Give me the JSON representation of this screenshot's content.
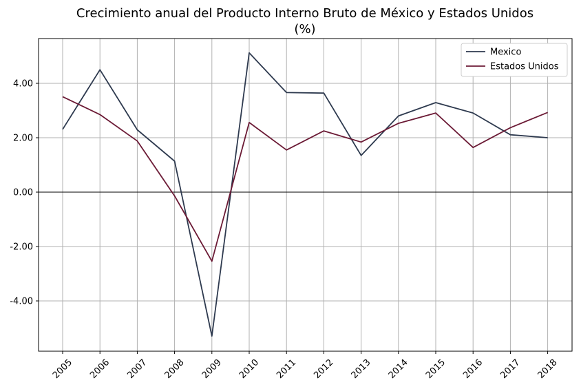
{
  "chart_data": {
    "type": "line",
    "title": "Crecimiento anual del Producto Interno Bruto de México y Estados Unidos",
    "subtitle": "(%)",
    "x": [
      "2005",
      "2006",
      "2007",
      "2008",
      "2009",
      "2010",
      "2011",
      "2012",
      "2013",
      "2014",
      "2015",
      "2016",
      "2017",
      "2018"
    ],
    "y_ticks": [
      -4,
      -2,
      0,
      2,
      4
    ],
    "y_tick_labels": [
      "-4.00",
      "-2.00",
      "0.00",
      "2.00",
      "4.00"
    ],
    "ylim": [
      -5.8,
      5.6
    ],
    "grid": true,
    "zero_line": true,
    "legend_position": "upper-right",
    "series": [
      {
        "name": "Mexico",
        "color": "#2e3a4f",
        "values": [
          2.31,
          4.5,
          2.29,
          1.14,
          -5.29,
          5.12,
          3.66,
          3.64,
          1.35,
          2.8,
          3.29,
          2.91,
          2.11,
          2.0
        ]
      },
      {
        "name": "Estados Unidos",
        "color": "#6b1a35",
        "values": [
          3.51,
          2.85,
          1.88,
          -0.14,
          -2.54,
          2.56,
          1.55,
          2.25,
          1.84,
          2.53,
          2.91,
          1.64,
          2.37,
          2.93
        ]
      }
    ]
  }
}
